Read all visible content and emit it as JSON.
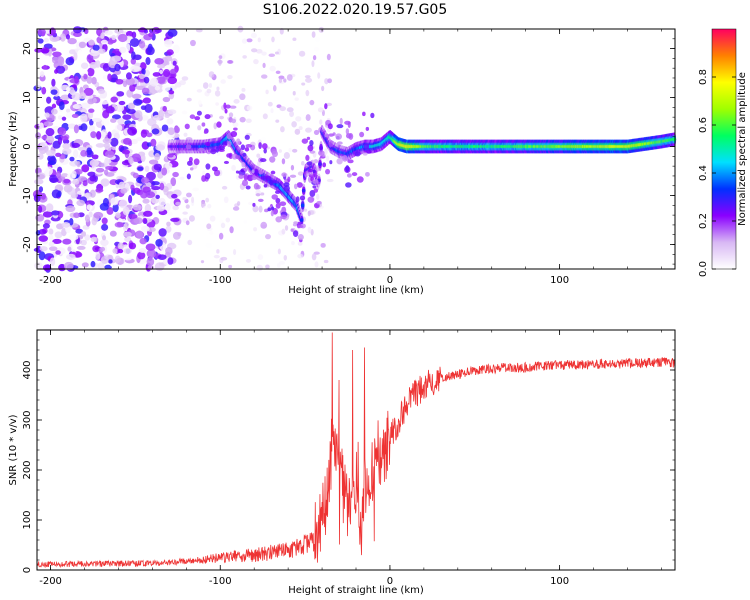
{
  "figure": {
    "title": "S106.2022.020.19.57.G05"
  },
  "chart_data": [
    {
      "type": "heatmap",
      "title": "",
      "xlabel": "Height of straight line (km)",
      "ylabel": "Frequency (Hz)",
      "xlim": [
        -208,
        168
      ],
      "ylim": [
        -25,
        24
      ],
      "x_ticks": [
        -200,
        -100,
        0,
        100
      ],
      "y_ticks": [
        -20,
        -10,
        0,
        10,
        20
      ],
      "colorbar": {
        "label": "Normalized spectral amplitude",
        "range": [
          0,
          1
        ],
        "ticks": [
          0.0,
          0.2,
          0.4,
          0.6,
          0.8
        ],
        "tick_labels": [
          "0.0",
          "0.2",
          "0.4",
          "0.6",
          "0.8"
        ],
        "colormap": [
          "#ffffff",
          "#d8b8f4",
          "#8a00ff",
          "#0030ff",
          "#00e0ff",
          "#00ff60",
          "#a0ff00",
          "#ffff00",
          "#ff8000",
          "#ff0060"
        ]
      },
      "ridge": {
        "description_free": true,
        "x": [
          -130,
          -120,
          -110,
          -100,
          -95,
          -90,
          -85,
          -80,
          -75,
          -70,
          -65,
          -60,
          -55,
          -52,
          -50,
          -45,
          -42,
          -40,
          -35,
          -30,
          -25,
          -20,
          -15,
          -10,
          -5,
          0,
          5,
          10,
          20,
          40,
          60,
          80,
          100,
          120,
          140,
          160,
          168
        ],
        "y": [
          0,
          0,
          0,
          0.5,
          2,
          -1,
          -3,
          -5,
          -6,
          -7,
          -8,
          -10,
          -12,
          -15,
          -5,
          -4,
          -8,
          3,
          0,
          -1,
          -1.5,
          -0.5,
          0,
          0,
          0.5,
          2,
          0.5,
          0,
          0,
          0,
          0,
          0,
          0,
          0,
          0,
          1,
          1.5
        ],
        "amplitude": [
          0.25,
          0.3,
          0.35,
          0.35,
          0.45,
          0.35,
          0.3,
          0.3,
          0.35,
          0.35,
          0.4,
          0.4,
          0.4,
          0.35,
          0.3,
          0.25,
          0.25,
          0.3,
          0.3,
          0.35,
          0.35,
          0.35,
          0.4,
          0.45,
          0.45,
          0.5,
          0.75,
          0.8,
          0.6,
          0.55,
          0.55,
          0.6,
          0.65,
          0.7,
          0.75,
          0.6,
          0.55
        ]
      },
      "noise_region": {
        "x_range": [
          -208,
          -125
        ],
        "max_amplitude": 0.3
      }
    },
    {
      "type": "line",
      "title": "",
      "xlabel": "Height of straight line (km)",
      "ylabel": "SNR (10 * v/v)",
      "xlim": [
        -208,
        168
      ],
      "ylim": [
        0,
        480
      ],
      "x_ticks": [
        -200,
        -100,
        0,
        100
      ],
      "y_ticks": [
        0,
        100,
        200,
        300,
        400
      ],
      "series": [
        {
          "color": "#ee3333",
          "x": [
            -208,
            -180,
            -150,
            -130,
            -120,
            -110,
            -100,
            -90,
            -80,
            -70,
            -60,
            -50,
            -45,
            -40,
            -36,
            -34,
            -30,
            -27,
            -25,
            -22,
            -20,
            -17,
            -15,
            -12,
            -10,
            -5,
            0,
            5,
            10,
            20,
            30,
            40,
            50,
            60,
            70,
            80,
            90,
            100,
            110,
            120,
            130,
            140,
            150,
            160,
            168
          ],
          "y": [
            12,
            12,
            13,
            15,
            18,
            20,
            25,
            28,
            30,
            35,
            40,
            50,
            60,
            100,
            180,
            260,
            220,
            150,
            120,
            140,
            180,
            120,
            160,
            180,
            200,
            220,
            260,
            300,
            330,
            370,
            385,
            392,
            398,
            402,
            405,
            405,
            408,
            410,
            410,
            412,
            413,
            413,
            414,
            415,
            415
          ]
        }
      ],
      "spikes": [
        {
          "x": -34,
          "y": 475
        },
        {
          "x": -30,
          "y": 380
        },
        {
          "x": -22,
          "y": 440
        },
        {
          "x": -15,
          "y": 445
        }
      ]
    }
  ]
}
